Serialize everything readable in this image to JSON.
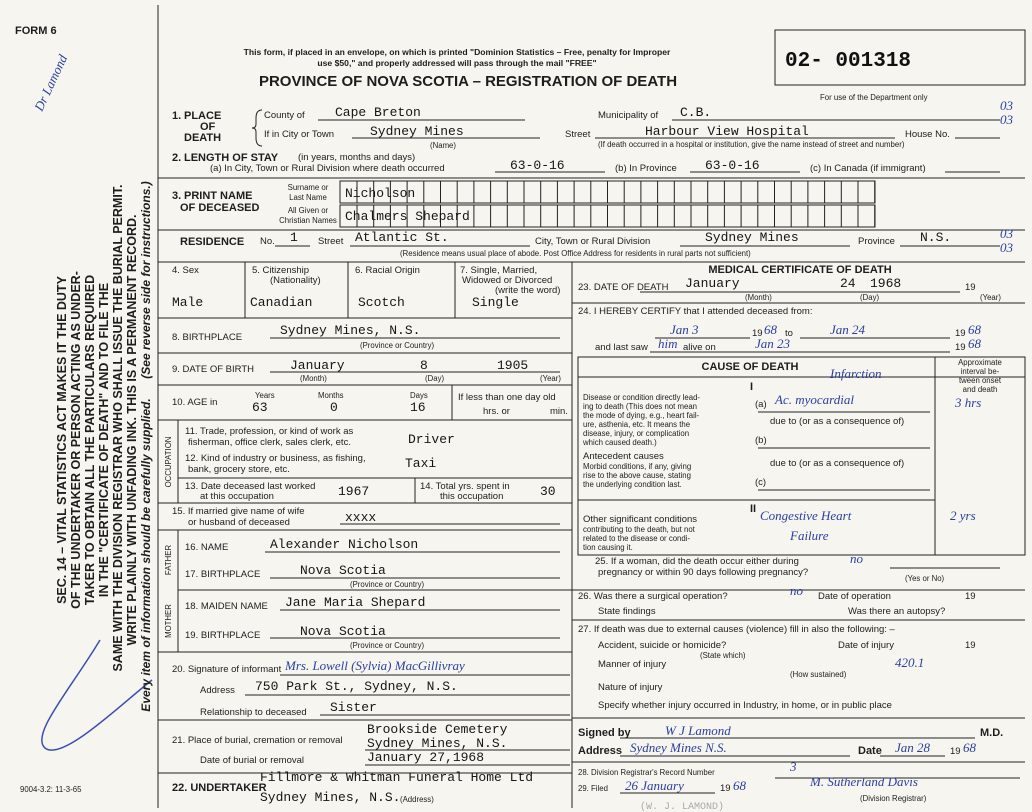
{
  "header": {
    "form_no": "FORM 6",
    "margin_note": "Dr Lamond",
    "notice": [
      "This form, if placed in an envelope, on which is printed \"Dominion Statistics – Free, penalty for Improper",
      "use $50,\" and properly addressed will pass through the mail \"FREE\""
    ],
    "title": "PROVINCE OF NOVA SCOTIA – REGISTRATION OF DEATH",
    "reg_no": "02- 001318",
    "dept_use": "For use of the Department only",
    "codes": [
      "03",
      "03",
      "03",
      "03"
    ]
  },
  "sidebar": [
    "SEC. 14 – VITAL STATISTICS ACT MAKES IT THE DUTY",
    "OF THE UNDERTAKER OR PERSON ACTING AS UNDER-",
    "TAKER TO OBTAIN ALL THE PARTICULARS REQUIRED",
    "IN THE \"CERTIFICATE OF DEATH\" AND TO FILE THE",
    "SAME WITH THE DIVISION REGISTRAR WHO SHALL ISSUE THE BURIAL PERMIT.",
    "WRITE PLAINLY WITH UNFADING INK. THIS IS A PERMANENT RECORD.",
    "Every item of information should be carefully supplied.",
    "(See reverse side for instructions.)"
  ],
  "footer": "9004-3.2: 11-3-65",
  "place": {
    "num": "1.",
    "label": [
      "PLACE",
      "OF",
      "DEATH"
    ],
    "county_label": "County of",
    "county": "Cape Breton",
    "municipality_label": "Municipality of",
    "municipality": "C.B.",
    "city_label": "If in City or Town",
    "city": "Sydney Mines",
    "name_note": "(Name)",
    "street_label": "Street",
    "street": "Harbour View Hospital",
    "house_label": "House No.",
    "note": "(If death occurred in a hospital or institution, give the name instead of street and number)"
  },
  "stay": {
    "num": "2.",
    "label": "LENGTH OF STAY",
    "label_note": "(in years, months and days)",
    "city_label": "(a) In City, Town or Rural Division where death occurred",
    "city": "63-0-16",
    "province_label": "(b) In Province",
    "province": "63-0-16",
    "canada_label": "(c) In Canada (if immigrant)"
  },
  "name": {
    "num": "3.",
    "label": [
      "PRINT NAME",
      "OF DECEASED"
    ],
    "surname_label": [
      "Surname or",
      "Last Name"
    ],
    "surname": "Nicholson",
    "given_label": [
      "All Given or",
      "Christian Names"
    ],
    "given": "Chalmers Shepard"
  },
  "residence": {
    "label": "RESIDENCE",
    "no_label": "No.",
    "no": "1",
    "street_label": "Street",
    "street": "Atlantic St.",
    "city_label": "City, Town or Rural Division",
    "city": "Sydney Mines",
    "province_label": "Province",
    "province": "N.S.",
    "note": "(Residence means usual place of abode. Post Office Address for residents in rural parts not sufficient)"
  },
  "personal": {
    "sex_label": "4. Sex",
    "sex": "Male",
    "citizenship_label": [
      "5. Citizenship",
      "(Nationality)"
    ],
    "citizenship": "Canadian",
    "origin_label": "6. Racial Origin",
    "origin": "Scotch",
    "status_label": [
      "7. Single, Married,",
      "Widowed or Divorced",
      "(write the word)"
    ],
    "status": "Single",
    "birthplace_label": "8. BIRTHPLACE",
    "birthplace": "Sydney Mines, N.S.",
    "birthplace_note": "(Province or Country)",
    "dob_label": "9. DATE OF BIRTH",
    "dob": [
      "January",
      "8",
      "1905"
    ],
    "dob_notes": [
      "(Month)",
      "(Day)",
      "(Year)"
    ],
    "age_label": "10. AGE in",
    "age_units": [
      "Years",
      "Months",
      "Days"
    ],
    "age": [
      "63",
      "0",
      "16"
    ],
    "age_note": [
      "If less than one day old",
      "hrs. or",
      "min."
    ]
  },
  "occupation": {
    "label": "OCCUPATION",
    "trade_label": [
      "11. Trade, profession, or kind of work as",
      "fisherman, office clerk, sales clerk, etc."
    ],
    "trade": "Driver",
    "industry_label": [
      "12. Kind of industry or business, as fishing,",
      "bank, grocery store, etc."
    ],
    "industry": "Taxi",
    "last_worked_label": [
      "13. Date deceased last worked",
      "at this occupation"
    ],
    "last_worked": "1967",
    "years_label": [
      "14. Total yrs. spent in",
      "this occupation"
    ],
    "years": "30"
  },
  "spouse": {
    "label": [
      "15. If married give name of wife",
      "or husband of deceased"
    ],
    "name": "xxxx"
  },
  "father": {
    "label": "FATHER",
    "name_label": "16. NAME",
    "name": "Alexander Nicholson",
    "birthplace_label": "17. BIRTHPLACE",
    "birthplace": "Nova Scotia",
    "birthplace_note": "(Province or Country)"
  },
  "mother": {
    "label": "MOTHER",
    "name_label": "18. MAIDEN NAME",
    "name": "Jane Maria Shepard",
    "birthplace_label": "19. BIRTHPLACE",
    "birthplace": "Nova Scotia",
    "birthplace_note": "(Province or Country)"
  },
  "informant": {
    "label": "20. Signature of informant",
    "signature": "Mrs. Lowell (Sylvia) MacGillivray",
    "address_label": "Address",
    "address": "750 Park St., Sydney, N.S.",
    "relationship_label": "Relationship to deceased",
    "relationship": "Sister"
  },
  "burial": {
    "place_label": "21. Place of burial, cremation or removal",
    "place": [
      "Brookside Cemetery",
      "Sydney Mines, N.S."
    ],
    "date_label": "Date of burial or removal",
    "date": "January 27,1968"
  },
  "undertaker": {
    "label": "22. UNDERTAKER",
    "name": "Fillmore & Whitman Funeral Home Ltd",
    "address": "Sydney Mines, N.S.",
    "address_note": "(Address)"
  },
  "medical": {
    "title": "MEDICAL CERTIFICATE OF DEATH",
    "death_label": "23. DATE OF DEATH",
    "death": [
      "January",
      "24",
      "1968"
    ],
    "year_prefix": "19",
    "death_notes": [
      "(Month)",
      "(Day)",
      "(Year)"
    ],
    "certify_label": "24. I HEREBY CERTIFY that I attended deceased from:",
    "from": "Jan 3",
    "from_year": "68",
    "to_label": "to",
    "to": "Jan 24",
    "to_year": "68",
    "last_seen_label": [
      "and last saw",
      "alive on"
    ],
    "pronoun": "him",
    "last_seen": "Jan 23",
    "last_seen_year": "68",
    "cause": {
      "title": "CAUSE OF DEATH",
      "interval_label": [
        "Approximate",
        "interval be-",
        "tween onset",
        "and death"
      ],
      "part_1": "I",
      "direct_label": [
        "Disease or condition directly lead-",
        "ing to death (This does not mean",
        "the mode of dying, e.g., heart fail-",
        "ure, asthenia, etc. It means the",
        "disease, injury, or complication",
        "which caused death.)"
      ],
      "a": "(a)",
      "a_cause": "Ac. myocardial",
      "a_note": "Infarction",
      "a_interval": "3 hrs",
      "due_to": "due to (or as a consequence of)",
      "b": "(b)",
      "antecedent_label": "Antecedent causes",
      "antecedent_note": [
        "Morbid conditions, if any, giving",
        "rise to the above cause, stating",
        "the underlying condition last."
      ],
      "c": "(c)",
      "part_2": "II",
      "other_label": "Other significant conditions",
      "other_note": [
        "contributing to the death, but not",
        "related to the disease or condi-",
        "tion causing it."
      ],
      "other": [
        "Congestive Heart",
        "Failure"
      ],
      "other_interval": "2 yrs"
    },
    "pregnancy_label": [
      "25. If a woman, did the death occur either during",
      "pregnancy or within 90 days following pregnancy?"
    ],
    "pregnancy": "no",
    "pregnancy_note": "(Yes or No)",
    "operation_label": "26. Was there a surgical operation?",
    "operation": "no",
    "operation_date_label": "Date of operation",
    "findings_label": "State findings",
    "autopsy_label": "Was there an autopsy?",
    "external_label": "27. If death was due to external causes (violence) fill in also the following: –",
    "accident_label": "Accident, suicide or homicide?",
    "state_which": "(State which)",
    "injury_date_label": "Date of injury",
    "manner_label": "Manner of injury",
    "manner": "420.1",
    "how_sustained": "(How sustained)",
    "nature_label": "Nature of injury",
    "specify_label": "Specify whether injury occurred in Industry, in home, or in public place",
    "signed_label": "Signed by",
    "signed": "W J Lamond",
    "md": "M.D.",
    "address_label": "Address",
    "address": "Sydney Mines N.S.",
    "date_label": "Date",
    "date": "Jan 28",
    "date_year": "68",
    "record_label": "28. Division Registrar's Record Number",
    "record": "3",
    "filed_label": "29. Filed",
    "filed": "26 January",
    "filed_year": "68",
    "registrar": "M. Sutherland Davis",
    "registrar_label": "(Division Registrar)",
    "stamp": "(W. J. LAMOND)"
  }
}
